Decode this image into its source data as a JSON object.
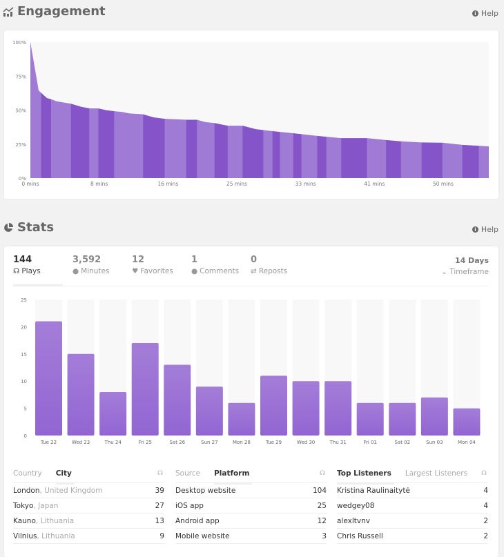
{
  "engagement": {
    "title": "Engagement",
    "help": "Help",
    "chart_data": {
      "type": "area",
      "ylim": [
        0,
        100
      ],
      "xlim": [
        0,
        55.3
      ],
      "y_ticks": [
        "0%",
        "25%",
        "50%",
        "75%",
        "100%"
      ],
      "x_ticks": [
        {
          "v": 0,
          "label": "0 mins"
        },
        {
          "v": 8.3,
          "label": "8 mins"
        },
        {
          "v": 16.6,
          "label": "16 mins"
        },
        {
          "v": 24.9,
          "label": "25 mins"
        },
        {
          "v": 33.2,
          "label": "33 mins"
        },
        {
          "v": 41.5,
          "label": "41 mins"
        },
        {
          "v": 49.8,
          "label": "50 mins"
        }
      ],
      "points": [
        [
          0,
          100
        ],
        [
          1.0,
          64.4
        ],
        [
          2.0,
          58.8
        ],
        [
          2.5,
          58
        ],
        [
          3.2,
          56.4
        ],
        [
          4.9,
          54.7
        ],
        [
          6.1,
          52.5
        ],
        [
          7.1,
          51.3
        ],
        [
          8.2,
          51.2
        ],
        [
          9.1,
          50
        ],
        [
          10.1,
          49.2
        ],
        [
          11.1,
          48.6
        ],
        [
          11.9,
          47.6
        ],
        [
          13.6,
          46.9
        ],
        [
          14.9,
          44.6
        ],
        [
          16.2,
          43.6
        ],
        [
          18.8,
          42.9
        ],
        [
          20.1,
          42.9
        ],
        [
          21.1,
          41.2
        ],
        [
          22.2,
          40.5
        ],
        [
          23.8,
          38.5
        ],
        [
          25.6,
          38.5
        ],
        [
          27.2,
          36
        ],
        [
          29.2,
          34.5
        ],
        [
          31.7,
          33
        ],
        [
          34.6,
          31
        ],
        [
          35.7,
          30.4
        ],
        [
          37.5,
          29.4
        ],
        [
          40.6,
          29.4
        ],
        [
          42.9,
          28
        ],
        [
          44.7,
          27
        ],
        [
          47.2,
          26.2
        ],
        [
          49.7,
          26
        ],
        [
          52.1,
          24.4
        ],
        [
          54.1,
          23.7
        ],
        [
          55.3,
          23.3
        ]
      ],
      "band_boundaries": [
        1.3,
        2.5,
        4.9,
        7.1,
        8.2,
        10.1,
        13.6,
        16.2,
        18.8,
        20.1,
        22.2,
        23.8,
        25.6,
        28.1,
        29.2,
        30.1,
        31.7,
        32.7,
        34.6,
        35.7,
        37.5,
        40.6,
        42.9,
        44.7,
        47.2,
        49.7,
        52.1,
        54.1
      ],
      "colors": {
        "light": "#a07bd6",
        "dark": "#8454c8",
        "bg": "#f8f8f8"
      }
    }
  },
  "stats": {
    "title": "Stats",
    "help": "Help",
    "tabs": [
      {
        "value": "144",
        "label": "Plays",
        "icon": "headphones-icon"
      },
      {
        "value": "3,592",
        "label": "Minutes",
        "icon": "clock-icon"
      },
      {
        "value": "12",
        "label": "Favorites",
        "icon": "heart-icon"
      },
      {
        "value": "1",
        "label": "Comments",
        "icon": "comment-icon"
      },
      {
        "value": "0",
        "label": "Reposts",
        "icon": "repost-icon"
      }
    ],
    "timeframe": {
      "value": "14 Days",
      "label": "Timeframe"
    },
    "chart_data": {
      "type": "bar",
      "ylim": [
        0,
        25
      ],
      "y_ticks": [
        0,
        5,
        10,
        15,
        20,
        25
      ],
      "categories": [
        "Tue 22",
        "Wed 23",
        "Thu 24",
        "Fri 25",
        "Sat 26",
        "Sun 27",
        "Mon 28",
        "Tue 29",
        "Wed 30",
        "Thu 31",
        "Fri 01",
        "Sat 02",
        "Sun 03",
        "Mon 04"
      ],
      "values": [
        21,
        15,
        8,
        17,
        13,
        9,
        6,
        11,
        10,
        10,
        6,
        6,
        7,
        5
      ],
      "colors": {
        "bar_top": "#a47dd8",
        "bar_bottom": "#9265d2",
        "track": "#f8f8f8"
      }
    },
    "tables": [
      {
        "tabs": [
          "Country",
          "City"
        ],
        "active": 1,
        "rows": [
          {
            "name": "London",
            "sub": "United Kingdom",
            "value": "39"
          },
          {
            "name": "Tokyo",
            "sub": "Japan",
            "value": "27"
          },
          {
            "name": "Kauno",
            "sub": "Lithuania",
            "value": "13"
          },
          {
            "name": "Vilnius",
            "sub": "Lithuania",
            "value": "9"
          }
        ]
      },
      {
        "tabs": [
          "Source",
          "Platform"
        ],
        "active": 1,
        "rows": [
          {
            "name": "Desktop website",
            "value": "104"
          },
          {
            "name": "iOS app",
            "value": "25"
          },
          {
            "name": "Android app",
            "value": "12"
          },
          {
            "name": "Mobile website",
            "value": "3"
          }
        ]
      },
      {
        "tabs": [
          "Top Listeners",
          "Largest Listeners"
        ],
        "active": 0,
        "rows": [
          {
            "name": "Kristina Raulinaitytė",
            "value": "4"
          },
          {
            "name": "wedgey08",
            "value": "4"
          },
          {
            "name": "alexltvnv",
            "value": "2"
          },
          {
            "name": "Chris Russell",
            "value": "2"
          }
        ]
      }
    ]
  }
}
